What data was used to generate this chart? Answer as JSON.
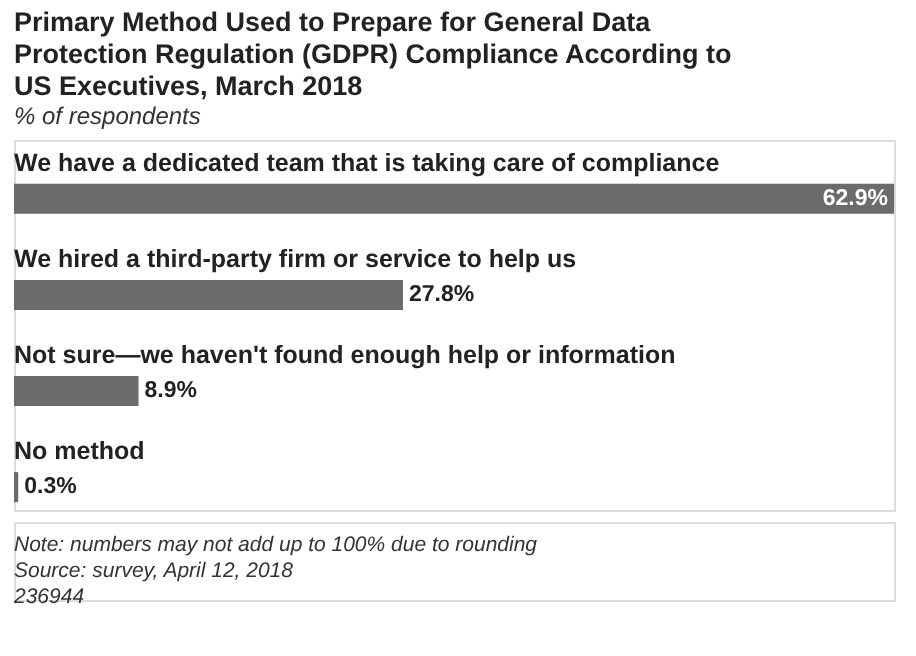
{
  "chart_data": {
    "type": "bar",
    "orientation": "horizontal",
    "title": "Primary Method Used to Prepare for General Data Protection Regulation (GDPR) Compliance According to US Executives, March 2018",
    "subtitle": "% of respondents",
    "categories": [
      "We have a dedicated team that is taking care of compliance",
      "We hired a third-party firm or service to help us",
      "Not sure—we haven't found enough help or information",
      "No method"
    ],
    "values": [
      62.9,
      27.8,
      8.9,
      0.3
    ],
    "color": "#6b6b6b",
    "value_labels": [
      "62.9%",
      "27.8%",
      "8.9%",
      "0.3%"
    ],
    "annotations": [
      "Note: numbers may not add up to 100% due to rounding",
      "Source: survey, April 12, 2018",
      "236944"
    ]
  }
}
